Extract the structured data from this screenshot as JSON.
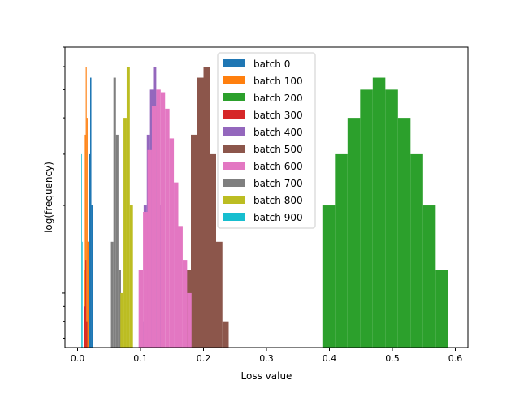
{
  "chart_data": {
    "type": "histogram",
    "xlabel": "Loss value",
    "ylabel": "log(frequency)",
    "xlim": [
      -0.02,
      0.62
    ],
    "ylim": [
      0.65,
      7.0
    ],
    "ytype": "log",
    "xticks": [
      0.0,
      0.1,
      0.2,
      0.3,
      0.4,
      0.5,
      0.6
    ],
    "xtick_labels": [
      "0.0",
      "0.1",
      "0.2",
      "0.3",
      "0.4",
      "0.5",
      "0.6"
    ],
    "legend_position": "top-center",
    "series": [
      {
        "name": "batch 0",
        "color": "#1f77b4",
        "edges": [
          0.014,
          0.016,
          0.018,
          0.02,
          0.022,
          0.024
        ],
        "counts": [
          0.8,
          1.5,
          3.0,
          5.5,
          2.0
        ]
      },
      {
        "name": "batch 100",
        "color": "#ff7f0e",
        "edges": [
          0.01,
          0.0115,
          0.013,
          0.0145,
          0.016,
          0.0175
        ],
        "counts": [
          1.2,
          3.5,
          6.0,
          4.0,
          1.5
        ]
      },
      {
        "name": "batch 200",
        "color": "#2ca02c",
        "edges": [
          0.3888,
          0.4088,
          0.4288,
          0.4488,
          0.4688,
          0.4888,
          0.5088,
          0.5288,
          0.5488,
          0.5688,
          0.5888
        ],
        "counts": [
          2.0,
          3.0,
          4.0,
          5.0,
          5.5,
          5.0,
          4.0,
          3.0,
          2.0,
          1.2
        ]
      },
      {
        "name": "batch 300",
        "color": "#d62728",
        "edges": [
          0.011,
          0.0125,
          0.014,
          0.0155
        ],
        "counts": [
          0.9,
          1.3,
          0.8
        ]
      },
      {
        "name": "batch 400",
        "color": "#9467bd",
        "edges": [
          0.1,
          0.105,
          0.11,
          0.115,
          0.12,
          0.125,
          0.13,
          0.135
        ],
        "counts": [
          0.8,
          2.0,
          3.5,
          5.0,
          6.0,
          4.0,
          2.0
        ]
      },
      {
        "name": "batch 500",
        "color": "#8c564b",
        "edges": [
          0.17,
          0.18,
          0.19,
          0.2,
          0.21,
          0.22,
          0.23,
          0.24
        ],
        "counts": [
          1.2,
          3.5,
          5.5,
          6.0,
          3.0,
          1.5,
          0.8
        ]
      },
      {
        "name": "batch 600",
        "color": "#e377c2",
        "edges": [
          0.097,
          0.104,
          0.111,
          0.118,
          0.125,
          0.132,
          0.139,
          0.146,
          0.153,
          0.16,
          0.167,
          0.174,
          0.181
        ],
        "counts": [
          1.2,
          1.9,
          3.1,
          4.4,
          5.0,
          4.9,
          4.3,
          3.4,
          2.4,
          1.7,
          1.3,
          1.0
        ]
      },
      {
        "name": "batch 700",
        "color": "#7f7f7f",
        "edges": [
          0.053,
          0.057,
          0.061,
          0.065,
          0.069
        ],
        "counts": [
          1.5,
          5.5,
          3.5,
          1.2
        ]
      },
      {
        "name": "batch 800",
        "color": "#bcbd22",
        "edges": [
          0.068,
          0.073,
          0.078,
          0.083,
          0.088
        ],
        "counts": [
          1.0,
          4.0,
          6.0,
          2.0
        ]
      },
      {
        "name": "batch 900",
        "color": "#17becf",
        "edges": [
          0.006,
          0.007,
          0.008
        ],
        "counts": [
          3.0,
          1.5
        ]
      }
    ]
  }
}
